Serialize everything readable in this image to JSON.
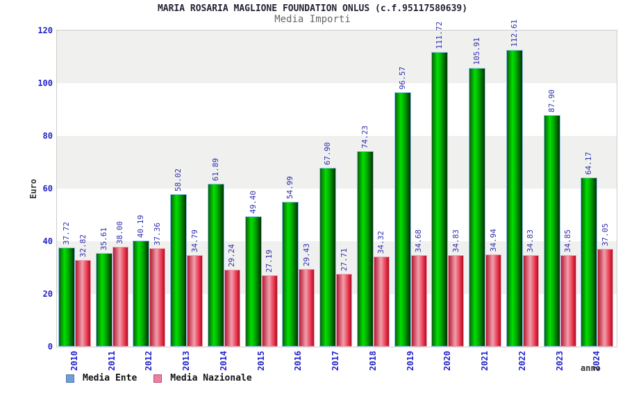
{
  "header": {
    "title": "MARIA ROSARIA MAGLIONE FOUNDATION ONLUS (c.f.95117580639)",
    "subtitle": "Media Importi"
  },
  "chart_data": {
    "type": "bar",
    "title": "Media Importi",
    "xlabel": "anno",
    "ylabel": "Euro",
    "ylim": [
      0,
      120
    ],
    "yticks": [
      0,
      20,
      40,
      60,
      80,
      100,
      120
    ],
    "grid": "alternating-horizontal-bands",
    "legend_position": "bottom-left",
    "categories": [
      "2010",
      "2011",
      "2012",
      "2013",
      "2014",
      "2015",
      "2016",
      "2017",
      "2018",
      "2019",
      "2020",
      "2021",
      "2022",
      "2023",
      "2024"
    ],
    "series": [
      {
        "name": "Media Ente",
        "values": [
          37.72,
          35.61,
          40.19,
          58.02,
          61.89,
          49.4,
          54.99,
          67.9,
          74.23,
          96.57,
          111.72,
          105.91,
          112.61,
          87.9,
          64.17
        ],
        "bar_color": "green",
        "legend_color": "#6f9fd8",
        "legend_border": "#4d77a8"
      },
      {
        "name": "Media Nazionale",
        "values": [
          32.82,
          38.0,
          37.36,
          34.79,
          29.24,
          27.19,
          29.43,
          27.71,
          34.32,
          34.68,
          34.83,
          34.94,
          34.83,
          34.85,
          37.05
        ],
        "bar_color": "red",
        "legend_color": "#ee7f9f",
        "legend_border": "#b05070"
      }
    ]
  },
  "colors": {
    "tick_label_blue": "#2222cc",
    "value_label_blue": "#2d2dae",
    "band_gray": "#f0f0ef",
    "band_white": "#ffffff",
    "plot_border": "#cccccc",
    "title_color": "#222233",
    "subtitle_color": "#666666",
    "axis_title_color": "#333333",
    "bar_green_bright": "#00e000",
    "bar_green_dark": "#003200",
    "bar_red_bright": "#ea3148",
    "bar_red_pink": "#f0a0ae",
    "bar_green_cap": "#8fc3ef",
    "bar_red_cap": "#f2a0b2"
  }
}
